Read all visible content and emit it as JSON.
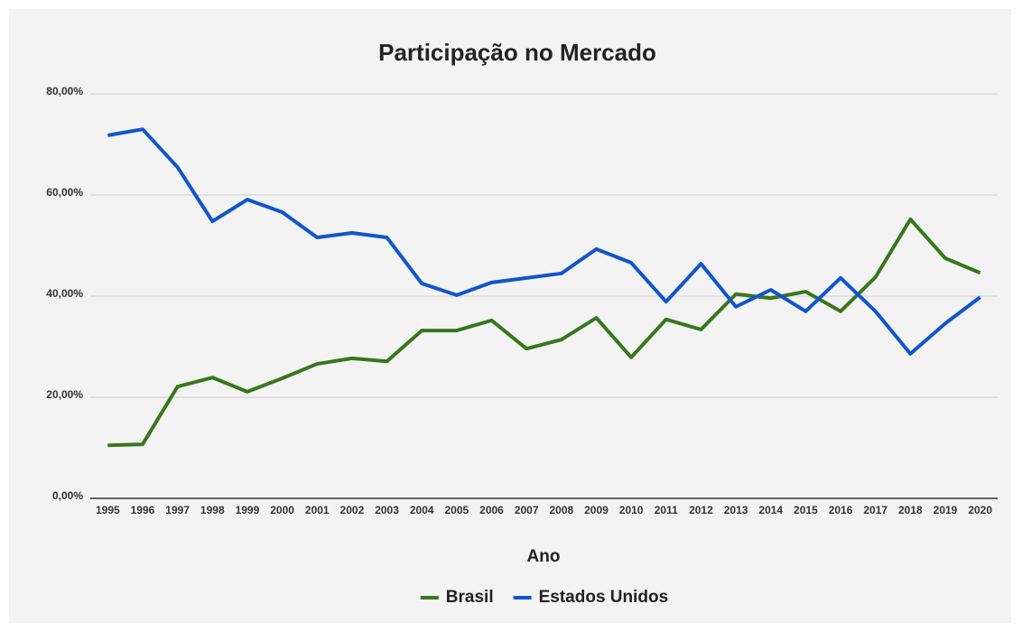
{
  "chart_data": {
    "type": "line",
    "title": "Participação no Mercado",
    "x_label": "Ano",
    "categories": [
      "1995",
      "1996",
      "1997",
      "1998",
      "1999",
      "2000",
      "2001",
      "2002",
      "2003",
      "2004",
      "2005",
      "2006",
      "2007",
      "2008",
      "2009",
      "2010",
      "2011",
      "2012",
      "2013",
      "2014",
      "2015",
      "2016",
      "2017",
      "2018",
      "2019",
      "2020"
    ],
    "series": [
      {
        "name": "Brasil",
        "color": "#38761d",
        "values": [
          10.5,
          10.7,
          22.1,
          23.9,
          21.1,
          23.75,
          26.6,
          27.7,
          27.1,
          33.2,
          33.2,
          35.2,
          29.6,
          31.4,
          35.7,
          27.9,
          35.4,
          33.4,
          40.4,
          39.6,
          40.9,
          37.0,
          43.75,
          55.2,
          47.5,
          44.6
        ]
      },
      {
        "name": "Estados Unidos",
        "color": "#1155cc",
        "values": [
          71.8,
          73.0,
          65.5,
          54.8,
          59.1,
          56.6,
          51.6,
          52.5,
          51.6,
          42.5,
          40.2,
          42.7,
          43.6,
          44.5,
          49.3,
          46.6,
          38.9,
          46.4,
          37.9,
          41.25,
          37.0,
          43.6,
          37.0,
          28.6,
          34.6,
          39.8
        ]
      }
    ],
    "ylim": [
      0,
      80
    ],
    "yticks": [
      {
        "value": 0,
        "label": "0,00%"
      },
      {
        "value": 20,
        "label": "20,00%"
      },
      {
        "value": 40,
        "label": "40,00%"
      },
      {
        "value": 60,
        "label": "60,00%"
      },
      {
        "value": 80,
        "label": "80,00%"
      }
    ],
    "grid": true,
    "legend": "bottom"
  }
}
